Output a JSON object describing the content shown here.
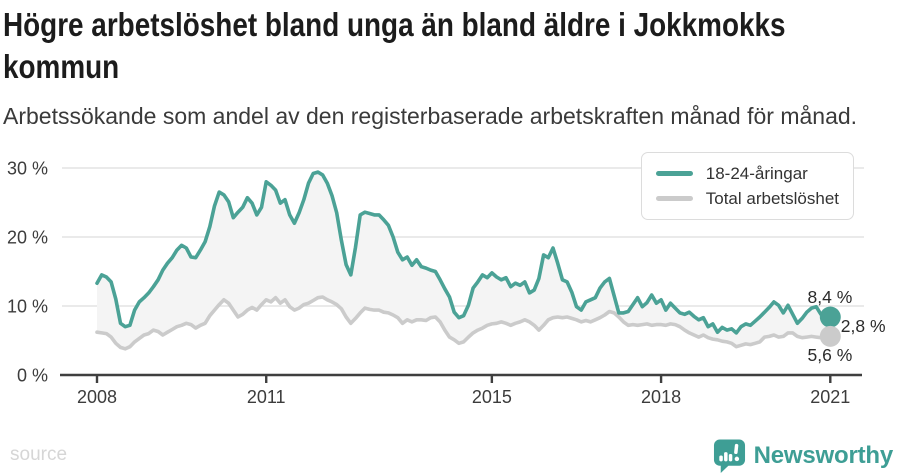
{
  "header": {
    "title": "Högre arbetslöshet bland unga än bland äldre i Jokkmokks kommun",
    "subtitle": "Arbetssökande som andel av den registerbaserade arbetskraften månad för månad."
  },
  "footer": {
    "source_label": "source",
    "brand": "Newsworthy"
  },
  "theme": {
    "accent": "#3E9E95"
  },
  "chart_data": {
    "type": "line",
    "unit": "%",
    "frequency": "monthly",
    "x_start": "2008-01",
    "x_end": "2021-01",
    "grid": "horizontal",
    "legend_position": "top-right",
    "band_fill": "#F4F4F4",
    "style": {
      "grid_color": "#E3E3E3",
      "axis_color": "#3F3F3F",
      "label_color": "#3C3C3C"
    },
    "ylim": [
      0,
      31.5
    ],
    "y_axis": {
      "ticks": [
        {
          "value": 0,
          "label": "0 %"
        },
        {
          "value": 10,
          "label": "10 %"
        },
        {
          "value": 20,
          "label": "20 %"
        },
        {
          "value": 30,
          "label": "30 %"
        }
      ]
    },
    "x_axis": {
      "ticks": [
        {
          "year": 2008,
          "label": "2008"
        },
        {
          "year": 2011,
          "label": "2011"
        },
        {
          "year": 2015,
          "label": "2015"
        },
        {
          "year": 2018,
          "label": "2018"
        },
        {
          "year": 2021,
          "label": "2021"
        }
      ]
    },
    "series": [
      {
        "name": "18-24-åringar",
        "color": "#4BA296",
        "values": [
          13.3,
          14.5,
          14.2,
          13.5,
          11.0,
          7.5,
          7.0,
          7.2,
          9.4,
          10.6,
          11.2,
          11.9,
          12.8,
          13.8,
          15.2,
          16.2,
          17.0,
          18.1,
          18.8,
          18.4,
          17.1,
          17.0,
          18.1,
          19.3,
          21.5,
          24.5,
          26.5,
          26.1,
          25.1,
          22.8,
          23.6,
          24.3,
          25.7,
          24.9,
          23.2,
          24.3,
          28.0,
          27.5,
          26.8,
          24.9,
          25.4,
          23.2,
          22.0,
          23.5,
          25.4,
          27.8,
          29.2,
          29.4,
          29.0,
          27.8,
          26.0,
          23.5,
          19.5,
          16.0,
          14.5,
          18.5,
          23.2,
          23.6,
          23.4,
          23.2,
          23.2,
          22.5,
          21.7,
          20.0,
          17.8,
          16.7,
          17.1,
          15.9,
          16.7,
          15.7,
          15.5,
          15.2,
          15.0,
          13.8,
          12.5,
          11.3,
          9.1,
          8.3,
          8.6,
          10.1,
          12.6,
          13.5,
          14.5,
          14.1,
          14.8,
          14.2,
          13.8,
          14.1,
          12.8,
          13.3,
          13.0,
          13.5,
          11.9,
          12.3,
          14.0,
          17.4,
          17.0,
          18.4,
          16.2,
          13.8,
          13.5,
          12.0,
          9.9,
          9.4,
          10.6,
          10.9,
          11.2,
          12.6,
          13.5,
          14.0,
          11.5,
          9.0,
          9.0,
          9.2,
          10.2,
          11.2,
          9.9,
          10.5,
          11.6,
          10.4,
          10.9,
          9.4,
          10.4,
          9.7,
          9.0,
          8.8,
          9.1,
          8.5,
          8.0,
          8.3,
          7.0,
          7.4,
          6.2,
          6.9,
          6.5,
          6.7,
          6.1,
          7.0,
          7.4,
          7.2,
          7.8,
          8.4,
          9.1,
          9.8,
          10.6,
          10.1,
          9.0,
          10.1,
          8.8,
          7.5,
          8.2,
          9.1,
          9.7,
          9.9,
          8.8,
          8.1,
          8.4
        ]
      },
      {
        "name": "Total arbetslöshet",
        "color": "#CBCBCB",
        "values": [
          6.2,
          6.1,
          6.0,
          5.5,
          4.6,
          4.0,
          3.8,
          4.1,
          4.8,
          5.3,
          5.8,
          6.0,
          6.5,
          6.3,
          5.8,
          6.2,
          6.6,
          7.0,
          7.2,
          7.5,
          7.3,
          6.8,
          7.2,
          7.5,
          8.6,
          9.4,
          10.2,
          10.9,
          10.4,
          9.4,
          8.4,
          8.8,
          9.4,
          9.8,
          9.4,
          10.2,
          10.9,
          10.6,
          11.2,
          10.4,
          10.9,
          9.9,
          9.4,
          9.7,
          10.2,
          10.4,
          10.8,
          11.2,
          11.3,
          10.9,
          10.6,
          10.2,
          9.6,
          8.4,
          7.5,
          8.2,
          9.0,
          9.7,
          9.5,
          9.4,
          9.4,
          9.1,
          9.0,
          8.7,
          8.3,
          7.5,
          8.0,
          7.7,
          8.0,
          8.0,
          7.9,
          8.3,
          8.4,
          7.7,
          6.5,
          5.5,
          5.1,
          4.6,
          4.8,
          5.5,
          6.1,
          6.5,
          6.8,
          7.2,
          7.4,
          7.5,
          7.7,
          7.5,
          7.2,
          7.5,
          7.7,
          8.0,
          7.7,
          7.2,
          6.5,
          7.2,
          8.0,
          8.3,
          8.4,
          8.3,
          8.4,
          8.2,
          8.0,
          7.7,
          7.9,
          7.7,
          8.0,
          8.3,
          8.7,
          9.2,
          9.0,
          8.4,
          7.7,
          7.2,
          7.3,
          7.2,
          7.3,
          7.4,
          7.2,
          7.3,
          7.3,
          7.2,
          7.4,
          7.3,
          7.0,
          6.5,
          6.1,
          5.8,
          5.5,
          5.8,
          5.4,
          5.2,
          5.1,
          4.9,
          4.8,
          4.6,
          4.1,
          4.3,
          4.5,
          4.4,
          4.6,
          4.8,
          5.5,
          5.6,
          5.8,
          5.5,
          5.6,
          6.1,
          6.1,
          5.6,
          5.4,
          5.5,
          5.6,
          5.5,
          5.4,
          5.5,
          5.6
        ]
      }
    ],
    "end_labels": {
      "young": "8,4 %",
      "difference": "2,8 %",
      "total": "5,6 %"
    }
  }
}
